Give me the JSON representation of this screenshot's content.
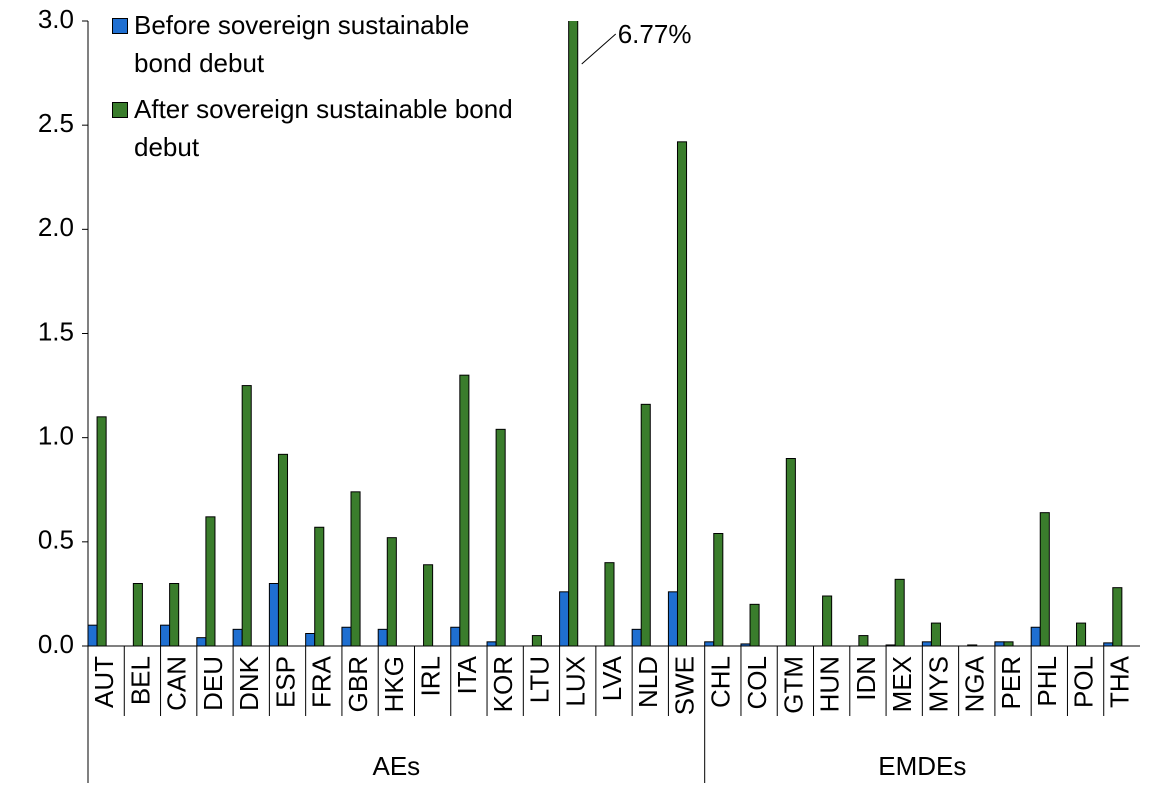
{
  "chart_data": {
    "type": "bar",
    "groups": [
      {
        "name": "AEs",
        "categories": [
          "AUT",
          "BEL",
          "CAN",
          "DEU",
          "DNK",
          "ESP",
          "FRA",
          "GBR",
          "HKG",
          "IRL",
          "ITA",
          "KOR",
          "LTU",
          "LUX",
          "LVA",
          "NLD",
          "SWE"
        ]
      },
      {
        "name": "EMDEs",
        "categories": [
          "CHL",
          "COL",
          "GTM",
          "HUN",
          "IDN",
          "MEX",
          "MYS",
          "NGA",
          "PER",
          "PHL",
          "POL",
          "THA"
        ]
      }
    ],
    "series": [
      {
        "name": "Before sovereign sustainable bond debut",
        "color": "#1f6fd1",
        "values": [
          0.1,
          0,
          0.1,
          0.04,
          0.08,
          0.3,
          0.06,
          0.09,
          0.08,
          0,
          0.09,
          0.02,
          0,
          0.26,
          0,
          0.08,
          0.26,
          0.02,
          0.01,
          0,
          0,
          0,
          0.005,
          0.02,
          0,
          0.02,
          0.09,
          0,
          0.015
        ]
      },
      {
        "name": "After sovereign sustainable bond debut",
        "color": "#3a7d2c",
        "values": [
          1.1,
          0.3,
          0.3,
          0.62,
          1.25,
          0.92,
          0.57,
          0.74,
          0.52,
          0.39,
          1.3,
          1.04,
          0.05,
          6.77,
          0.4,
          1.16,
          2.42,
          0.54,
          0.2,
          0.9,
          0.24,
          0.05,
          0.32,
          0.11,
          0.005,
          0.02,
          0.64,
          0.11,
          0.28
        ],
        "value_labels": [
          null,
          null,
          null,
          null,
          null,
          null,
          null,
          null,
          null,
          null,
          null,
          null,
          null,
          "6.77%",
          null,
          null,
          null,
          null,
          null,
          null,
          null,
          null,
          null,
          null,
          null,
          null,
          null,
          null,
          null
        ]
      }
    ],
    "ylim": [
      0,
      3
    ],
    "yticks": [
      {
        "value": 0,
        "label": "0.0"
      },
      0.5,
      {
        "value": 1,
        "label": "1.0"
      },
      1.5,
      {
        "value": 2,
        "label": "2.0"
      },
      2.5,
      {
        "value": 3,
        "label": "3.0"
      }
    ],
    "legend": "top-left"
  }
}
